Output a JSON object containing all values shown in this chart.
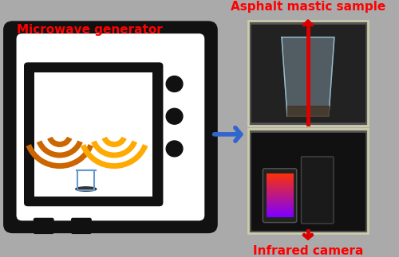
{
  "background_color": "#aaaaaa",
  "title_left": "Microwave generator",
  "title_right_top": "Asphalt mastic sample",
  "title_right_bottom": "Infrared camera",
  "title_color": "#ff0000",
  "oven_body_color": "#111111",
  "oven_interior_color": "#ffffff",
  "wave_color": "#cc6600",
  "wave_color_inner": "#ffaa00",
  "arrow_color": "#3366cc",
  "red_arrow_color": "#dd0000",
  "photo_border_color": "#ccccaa",
  "dots_color": "#111111",
  "container_color": "#6699cc"
}
